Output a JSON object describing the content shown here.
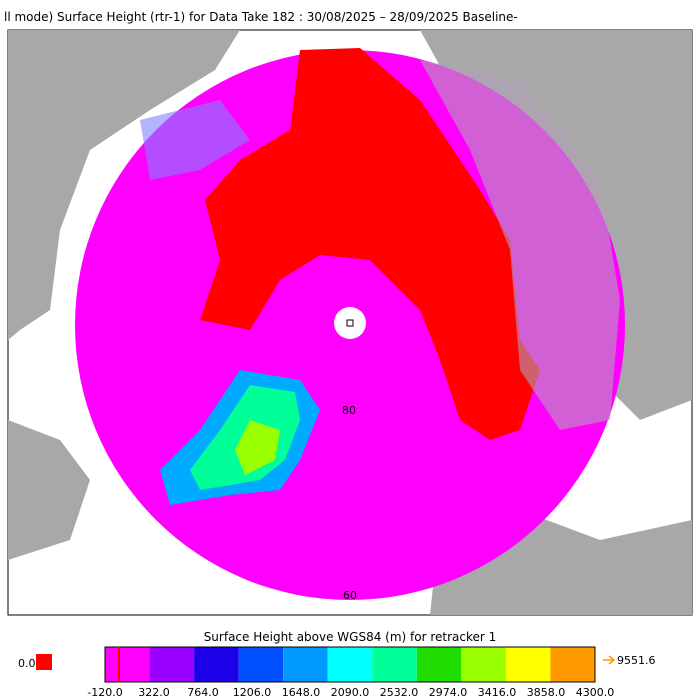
{
  "header": {
    "title": "ll mode) Surface Height (rtr-1) for Data Take 182 : 30/08/2025 – 28/09/2025 Baseline-"
  },
  "map": {
    "labels": [
      "80",
      "60"
    ]
  },
  "colorbar": {
    "title": "Surface Height above WGS84 (m) for retracker 1",
    "ticks": [
      "-120.0",
      "322.0",
      "764.0",
      "1206.0",
      "1648.0",
      "2090.0",
      "2532.0",
      "2974.0",
      "3416.0",
      "3858.0",
      "4300.0"
    ],
    "colors": [
      "#ff00ff",
      "#9a00ff",
      "#1c00e8",
      "#0050ff",
      "#0099ff",
      "#00ffff",
      "#00ff99",
      "#22dd00",
      "#99ff00",
      "#ffff00",
      "#ff9900"
    ],
    "under_label": "0.0",
    "under_color": "#ff0000",
    "over_label": "9551.6",
    "over_color": "#ff9900"
  }
}
